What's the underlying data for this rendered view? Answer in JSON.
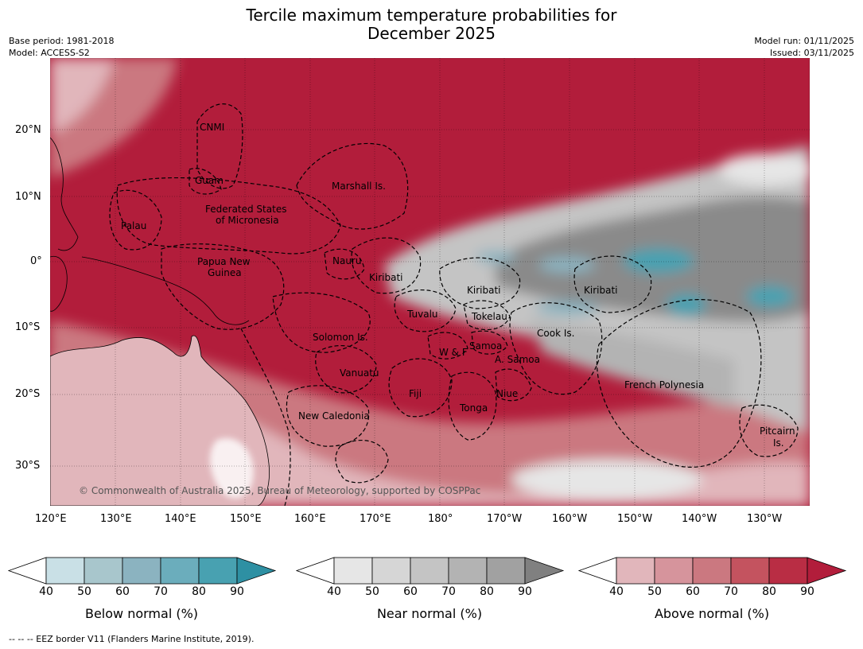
{
  "title": {
    "line1": "Tercile maximum temperature probabilities for",
    "line2": "December 2025"
  },
  "meta": {
    "base_period": "Base period: 1981-2018",
    "model": "Model: ACCESS-S2",
    "model_run": "Model run: 01/11/2025",
    "issued": "Issued: 03/11/2025"
  },
  "axes": {
    "lat_labels": [
      "20°N",
      "10°N",
      "0°",
      "10°S",
      "20°S",
      "30°S"
    ],
    "lon_labels": [
      "120°E",
      "130°E",
      "140°E",
      "150°E",
      "160°E",
      "170°E",
      "180°",
      "170°W",
      "160°W",
      "150°W",
      "140°W",
      "130°W"
    ]
  },
  "regions": [
    "CNMI",
    "Guam",
    "Marshall Is.",
    "Federated States",
    "of Micronesia",
    "Palau",
    "Papua New",
    "Guinea",
    "Nauru",
    "Kiribati",
    "Kiribati",
    "Kiribati",
    "Tuvalu",
    "Tokelau",
    "Cook Is.",
    "Solomon Is.",
    "Samoa",
    "W & F",
    "A. Samoa",
    "Vanuatu",
    "Fiji",
    "Niue",
    "Tonga",
    "French Polynesia",
    "New Caledonia",
    "Pitcairn",
    "Is."
  ],
  "copyright": "© Commonwealth of Australia 2025, Bureau of Meteorology, supported by COSPPac",
  "legends": [
    {
      "label": "Below normal (%)",
      "ticks": [
        "40",
        "50",
        "60",
        "70",
        "80",
        "90"
      ],
      "colors": [
        "#ffffff",
        "#c9e0e6",
        "#a8c6cc",
        "#8bb3c0",
        "#6badbc",
        "#48a1b1",
        "#2e90a3"
      ]
    },
    {
      "label": "Near normal (%)",
      "ticks": [
        "40",
        "50",
        "60",
        "70",
        "80",
        "90"
      ],
      "colors": [
        "#ffffff",
        "#e6e6e6",
        "#d6d6d6",
        "#c4c4c4",
        "#b3b3b3",
        "#a1a1a1",
        "#808080"
      ]
    },
    {
      "label": "Above normal (%)",
      "ticks": [
        "40",
        "50",
        "60",
        "70",
        "80",
        "90"
      ],
      "colors": [
        "#ffffff",
        "#e1b6bb",
        "#d6949c",
        "#cb7880",
        "#c4535f",
        "#b92d44",
        "#b21d3b"
      ]
    }
  ],
  "footer": "--  --  -- EEZ border V11 (Flanders Marine Institute, 2019)."
}
